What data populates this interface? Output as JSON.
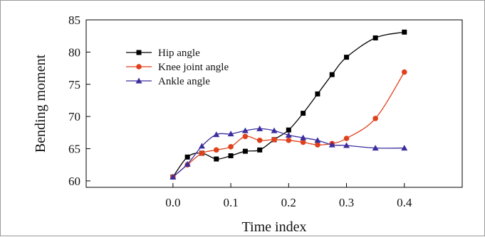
{
  "chart_data": {
    "type": "line",
    "title": "",
    "xlabel": "Time index",
    "ylabel": "Bending moment",
    "xlim": [
      -0.15,
      0.5
    ],
    "ylim": [
      59,
      85
    ],
    "x_ticks": [
      0.0,
      0.1,
      0.2,
      0.3,
      0.4
    ],
    "x_tick_labels": [
      "0.0",
      "0.1",
      "0.2",
      "0.3",
      "0.4"
    ],
    "y_ticks": [
      60,
      65,
      70,
      75,
      80,
      85
    ],
    "y_tick_labels": [
      "60",
      "65",
      "70",
      "75",
      "80",
      "85"
    ],
    "grid": false,
    "legend_position": "top-left",
    "x": [
      0.0,
      0.025,
      0.05,
      0.075,
      0.1,
      0.125,
      0.15,
      0.175,
      0.2,
      0.225,
      0.25,
      0.275,
      0.3,
      0.35,
      0.4
    ],
    "series": [
      {
        "name": "Hip angle",
        "color": "#000000",
        "marker": "square",
        "values": [
          60.6,
          63.7,
          64.3,
          63.4,
          63.9,
          64.6,
          64.8,
          66.4,
          67.9,
          70.5,
          73.5,
          76.5,
          79.2,
          82.2,
          83.1
        ]
      },
      {
        "name": "Knee joint angle",
        "color": "#e0401c",
        "marker": "circle",
        "values": [
          60.6,
          62.5,
          64.3,
          64.8,
          65.3,
          66.9,
          66.3,
          66.4,
          66.3,
          66.0,
          65.6,
          65.8,
          66.6,
          69.7,
          76.9
        ]
      },
      {
        "name": "Ankle angle",
        "color": "#3a2e9e",
        "marker": "triangle",
        "values": [
          60.6,
          62.6,
          65.4,
          67.2,
          67.3,
          67.8,
          68.1,
          67.8,
          67.1,
          66.7,
          66.3,
          65.6,
          65.5,
          65.1,
          65.1
        ]
      }
    ]
  }
}
